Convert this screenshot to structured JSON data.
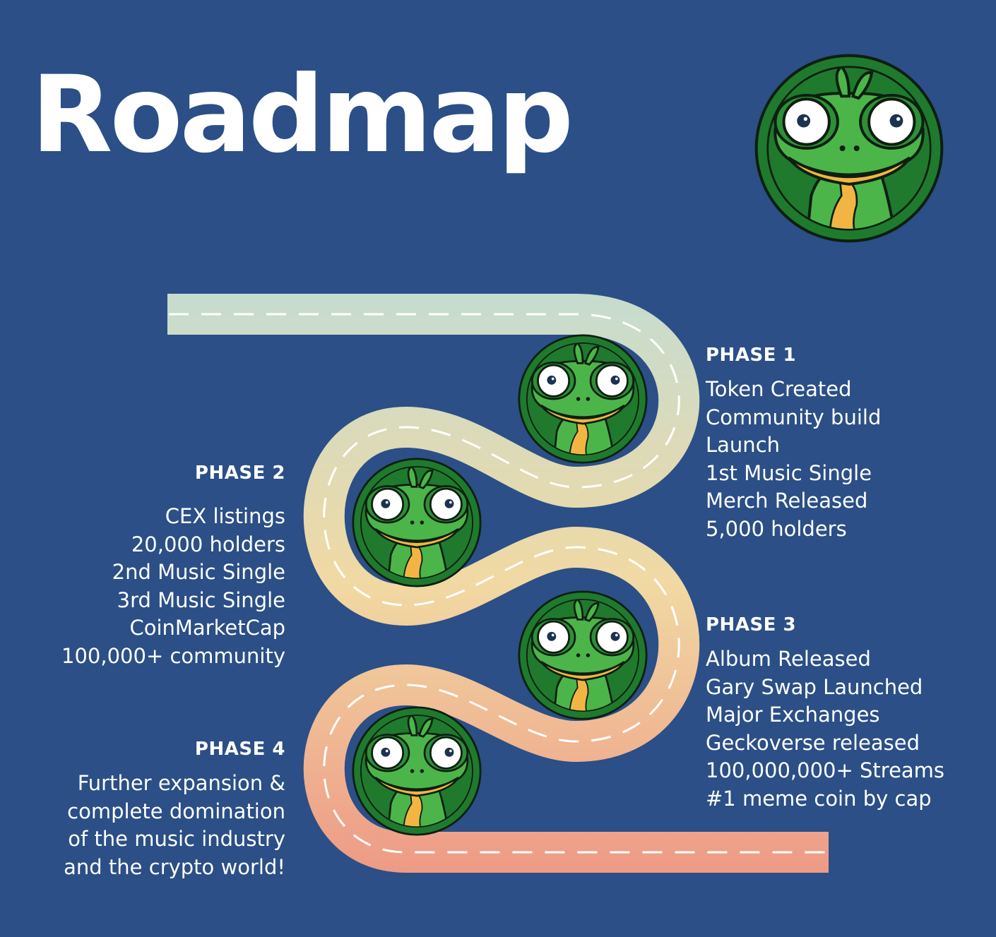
{
  "title": "Roadmap",
  "colors": {
    "background": "#2b4f86",
    "road_top": "#c6dccf",
    "road_middle": "#f1d9a3",
    "road_bottom": "#ee9a85",
    "dash": "#ffffff",
    "frog_green": "#4cb54a",
    "frog_ring": "#1f7a2e",
    "frog_throat": "#f2b544"
  },
  "icons": {
    "logo": "frog-logo-icon",
    "milestone": "frog-badge-icon"
  },
  "phases": [
    {
      "heading": "PHASE 1",
      "items": [
        "Token Created",
        "Community build",
        "Launch",
        "1st Music Single",
        "Merch Released",
        "5,000 holders"
      ]
    },
    {
      "heading": "PHASE 2",
      "items": [
        "CEX listings",
        "20,000 holders",
        "2nd Music Single",
        "3rd Music Single",
        "CoinMarketCap",
        "100,000+ community"
      ]
    },
    {
      "heading": "PHASE 3",
      "items": [
        "Album Released",
        "Gary Swap Launched",
        "Major Exchanges",
        "Geckoverse released",
        "100,000,000+ Streams",
        "#1 meme coin by cap"
      ]
    },
    {
      "heading": "PHASE 4",
      "items": [
        "Further expansion &",
        "complete domination",
        "of the music industry",
        "and the crypto world!"
      ]
    }
  ]
}
